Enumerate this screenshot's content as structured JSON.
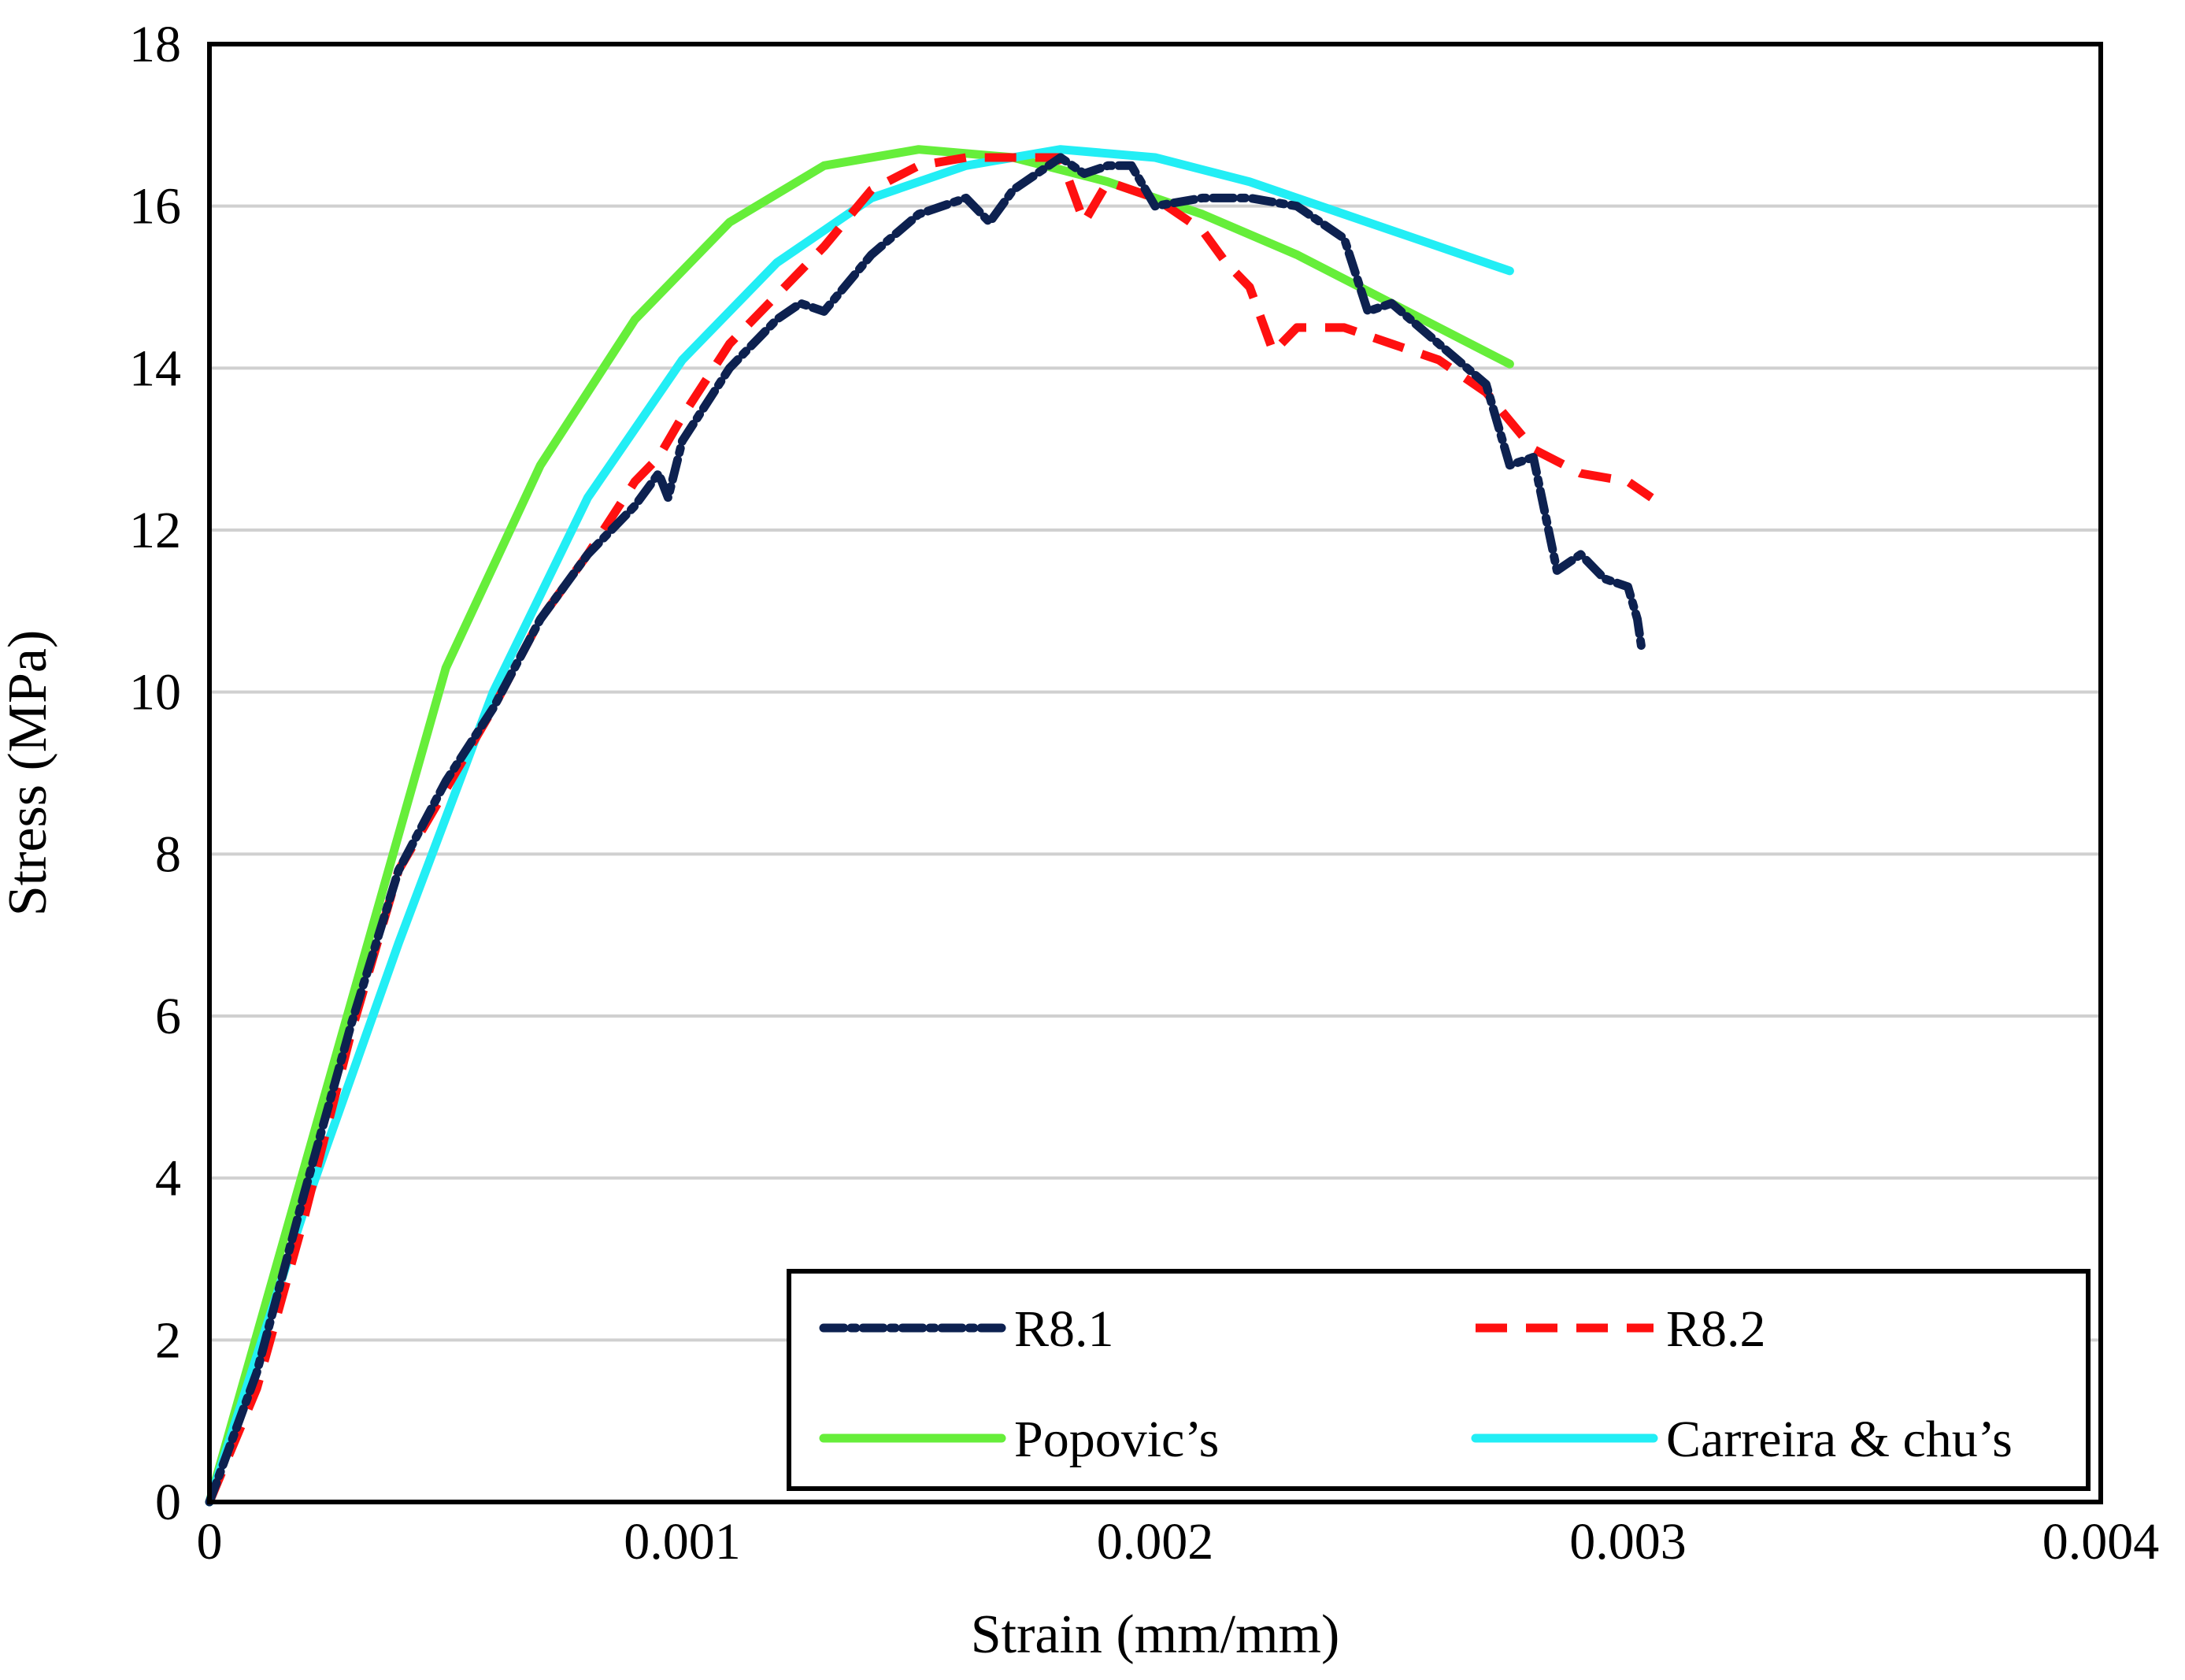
{
  "chart_data": {
    "type": "line",
    "title": "",
    "xlabel": "Strain (mm/mm)",
    "ylabel": "Stress (MPa)",
    "xlim": [
      0,
      0.004
    ],
    "ylim": [
      0,
      18
    ],
    "x_ticks": [
      0,
      0.001,
      0.002,
      0.003,
      0.004
    ],
    "x_tick_labels": [
      "0",
      "0.001",
      "0.002",
      "0.003",
      "0.004"
    ],
    "y_ticks": [
      0,
      2,
      4,
      6,
      8,
      10,
      12,
      14,
      16,
      18
    ],
    "y_tick_labels": [
      "0",
      "2",
      "4",
      "6",
      "8",
      "10",
      "12",
      "14",
      "16",
      "18"
    ],
    "grid": "horizontal",
    "legend_position": "bottom-right",
    "series": [
      {
        "name": "R8.1",
        "style": "dotted-dash",
        "color": "#0d2150",
        "points": [
          [
            0,
            0
          ],
          [
            0.0001,
            1.6
          ],
          [
            0.0002,
            3.8
          ],
          [
            0.0003,
            5.9
          ],
          [
            0.0004,
            7.8
          ],
          [
            0.0005,
            8.9
          ],
          [
            0.0006,
            9.8
          ],
          [
            0.0007,
            10.9
          ],
          [
            0.0008,
            11.7
          ],
          [
            0.0009,
            12.3
          ],
          [
            0.00095,
            12.7
          ],
          [
            0.00097,
            12.4
          ],
          [
            0.001,
            13.1
          ],
          [
            0.0011,
            14.0
          ],
          [
            0.0012,
            14.6
          ],
          [
            0.00125,
            14.8
          ],
          [
            0.0013,
            14.7
          ],
          [
            0.0014,
            15.4
          ],
          [
            0.0015,
            15.9
          ],
          [
            0.0016,
            16.1
          ],
          [
            0.00165,
            15.8
          ],
          [
            0.0017,
            16.2
          ],
          [
            0.0018,
            16.6
          ],
          [
            0.00185,
            16.4
          ],
          [
            0.0019,
            16.5
          ],
          [
            0.00195,
            16.5
          ],
          [
            0.002,
            16.0
          ],
          [
            0.0021,
            16.1
          ],
          [
            0.0022,
            16.1
          ],
          [
            0.0023,
            16.0
          ],
          [
            0.0024,
            15.6
          ],
          [
            0.00245,
            14.7
          ],
          [
            0.0025,
            14.8
          ],
          [
            0.0026,
            14.3
          ],
          [
            0.0027,
            13.8
          ],
          [
            0.00275,
            12.8
          ],
          [
            0.0028,
            12.9
          ],
          [
            0.00285,
            11.5
          ],
          [
            0.0029,
            11.7
          ],
          [
            0.00295,
            11.4
          ],
          [
            0.003,
            11.3
          ],
          [
            0.00302,
            10.9
          ],
          [
            0.00303,
            10.5
          ]
        ]
      },
      {
        "name": "R8.2",
        "style": "dashed",
        "color": "#ff1010",
        "points": [
          [
            0,
            0
          ],
          [
            0.0001,
            1.4
          ],
          [
            0.0002,
            3.5
          ],
          [
            0.0003,
            5.8
          ],
          [
            0.0004,
            7.8
          ],
          [
            0.0005,
            8.8
          ],
          [
            0.0006,
            9.8
          ],
          [
            0.0007,
            10.9
          ],
          [
            0.0008,
            11.7
          ],
          [
            0.0009,
            12.6
          ],
          [
            0.00095,
            12.9
          ],
          [
            0.001,
            13.4
          ],
          [
            0.0011,
            14.3
          ],
          [
            0.0012,
            14.9
          ],
          [
            0.0013,
            15.5
          ],
          [
            0.0014,
            16.2
          ],
          [
            0.0015,
            16.5
          ],
          [
            0.0016,
            16.6
          ],
          [
            0.0017,
            16.6
          ],
          [
            0.0018,
            16.6
          ],
          [
            0.00185,
            15.8
          ],
          [
            0.0019,
            16.3
          ],
          [
            0.002,
            16.1
          ],
          [
            0.0021,
            15.7
          ],
          [
            0.00215,
            15.3
          ],
          [
            0.0022,
            15.0
          ],
          [
            0.00225,
            14.2
          ],
          [
            0.0023,
            14.5
          ],
          [
            0.0024,
            14.5
          ],
          [
            0.0025,
            14.3
          ],
          [
            0.0026,
            14.1
          ],
          [
            0.0027,
            13.7
          ],
          [
            0.0028,
            13.0
          ],
          [
            0.0029,
            12.7
          ],
          [
            0.003,
            12.6
          ],
          [
            0.00305,
            12.4
          ]
        ]
      },
      {
        "name": "Popovic’s",
        "style": "solid",
        "color": "#66ee3a",
        "points": [
          [
            0,
            0
          ],
          [
            0.0005,
            10.3
          ],
          [
            0.0007,
            12.8
          ],
          [
            0.0009,
            14.6
          ],
          [
            0.0011,
            15.8
          ],
          [
            0.0013,
            16.5
          ],
          [
            0.0015,
            16.7
          ],
          [
            0.0017,
            16.6
          ],
          [
            0.0019,
            16.3
          ],
          [
            0.0021,
            15.9
          ],
          [
            0.0023,
            15.4
          ],
          [
            0.0025,
            14.8
          ],
          [
            0.0027,
            14.2
          ],
          [
            0.00275,
            14.05
          ]
        ]
      },
      {
        "name": "Carreira & chu’s",
        "style": "solid",
        "color": "#22eef5",
        "points": [
          [
            0,
            0
          ],
          [
            0.0002,
            3.6
          ],
          [
            0.0004,
            6.9
          ],
          [
            0.0006,
            10.0
          ],
          [
            0.0008,
            12.4
          ],
          [
            0.001,
            14.1
          ],
          [
            0.0012,
            15.3
          ],
          [
            0.0014,
            16.1
          ],
          [
            0.0016,
            16.5
          ],
          [
            0.0018,
            16.7
          ],
          [
            0.002,
            16.6
          ],
          [
            0.0022,
            16.3
          ],
          [
            0.0024,
            15.9
          ],
          [
            0.0026,
            15.5
          ],
          [
            0.00275,
            15.2
          ]
        ]
      }
    ]
  }
}
